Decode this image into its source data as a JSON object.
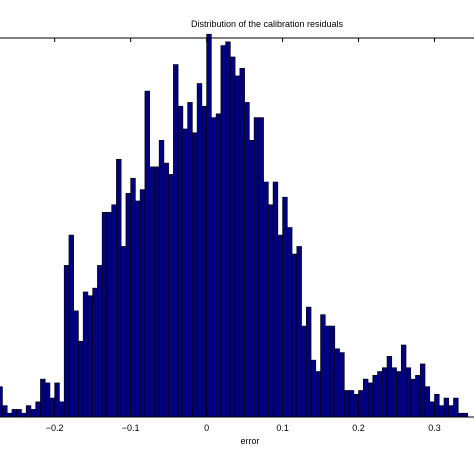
{
  "chart_data": {
    "type": "bar",
    "title": "Distribution of the calibration residuals",
    "xlabel": "error",
    "ylabel": "",
    "xlim": [
      -0.272,
      0.352
    ],
    "ylim": [
      0,
      100
    ],
    "grid": false,
    "x_ticks": [
      -0.2,
      -0.1,
      0,
      0.1,
      0.2,
      0.3
    ],
    "x_tick_labels": [
      "−0.2",
      "−0.1",
      "0",
      "0.1",
      "0.2",
      "0.3"
    ],
    "bin_width": 0.00625,
    "bins_start": -0.275,
    "values": [
      8,
      3,
      1,
      2,
      2,
      1,
      3,
      2,
      4,
      10,
      9,
      5,
      9,
      4,
      40,
      48,
      28,
      20,
      33,
      32,
      34,
      40,
      54,
      54,
      56,
      68,
      45,
      59,
      63,
      57,
      60,
      86,
      66,
      66,
      73,
      67,
      64,
      93,
      82,
      76,
      83,
      75,
      88,
      82,
      101,
      79,
      80,
      98,
      99,
      95,
      90,
      92,
      83,
      73,
      79,
      79,
      62,
      56,
      62,
      48,
      58,
      50,
      43,
      45,
      24,
      29,
      15,
      12,
      27,
      24,
      24,
      18,
      17,
      7,
      7,
      6,
      7,
      10,
      9,
      11,
      12,
      13,
      16,
      13,
      12,
      19,
      13,
      10,
      11,
      14,
      8,
      4,
      6,
      3,
      5,
      3,
      5,
      1,
      1,
      0
    ]
  }
}
